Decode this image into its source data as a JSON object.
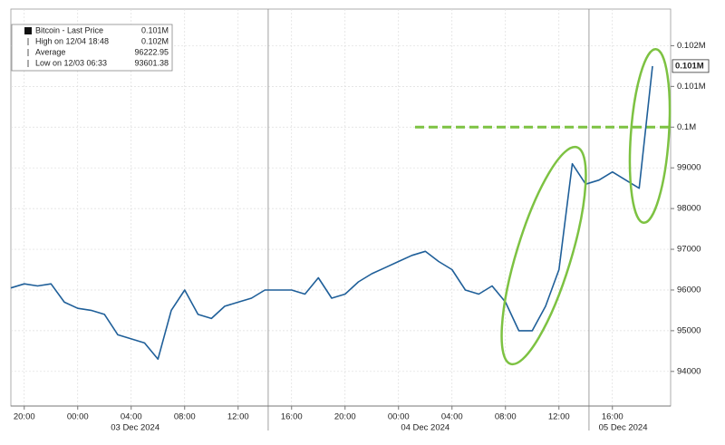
{
  "chart_data": {
    "type": "line",
    "categories": [
      null,
      "20:00",
      null,
      null,
      null,
      "00:00",
      null,
      null,
      null,
      "04:00",
      null,
      null,
      null,
      "08:00",
      null,
      null,
      null,
      "12:00",
      null,
      null,
      null,
      "16:00",
      null,
      null,
      null,
      "20:00",
      null,
      null,
      null,
      "00:00",
      null,
      null,
      null,
      "04:00",
      null,
      null,
      null,
      "08:00",
      null,
      null,
      null,
      "12:00",
      null,
      null,
      null,
      "16:00",
      null,
      null,
      null
    ],
    "date_labels": [
      "03 Dec 2024",
      "04 Dec 2024",
      "05 Dec 2024"
    ],
    "series": [
      {
        "name": "Bitcoin - Last Price",
        "color": "#1f5f99",
        "values": [
          96050,
          96150,
          96100,
          96150,
          95700,
          95550,
          95500,
          95400,
          94900,
          94800,
          94700,
          94300,
          95500,
          96000,
          95400,
          95300,
          95600,
          95700,
          95800,
          96000,
          96000,
          96000,
          95900,
          96300,
          95800,
          95900,
          96200,
          96400,
          96550,
          96700,
          96850,
          96950,
          96700,
          96500,
          96000,
          95900,
          96100,
          95700,
          95000,
          95000,
          95600,
          96500,
          99100,
          98600,
          98700,
          98900,
          98700,
          98500,
          101500
        ]
      }
    ],
    "legend": [
      {
        "label": "Bitcoin - Last Price",
        "value": "0.101M"
      },
      {
        "label": "High on 12/04 18:48",
        "value": "0.102M"
      },
      {
        "label": "Average",
        "value": "96222.95"
      },
      {
        "label": "Low on 12/03 06:33",
        "value": "93601.38"
      }
    ],
    "last_price_label": "0.101M",
    "reference_line": 100000,
    "reference_color": "#7dc242",
    "ylim": [
      93150,
      102900
    ],
    "yticks": [
      94000,
      95000,
      96000,
      97000,
      98000,
      99000,
      {
        "value": 100000,
        "label": "0.1M"
      },
      {
        "value": 101000,
        "label": "0.101M"
      },
      {
        "value": 102000,
        "label": "0.102M"
      }
    ],
    "grid": true
  }
}
